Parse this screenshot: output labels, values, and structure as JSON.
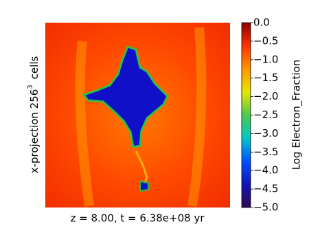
{
  "chart_data": {
    "type": "image",
    "xlabel": "z = 8.00, t = 6.38e+08 yr",
    "ylabel": {
      "text": "x-projection 256",
      "sup": "3",
      "suffix": "cells"
    },
    "colorbar_label": "Log Electron_Fraction",
    "colormap": [
      "#2d0a4e",
      "#1414b4",
      "#0050ff",
      "#00c8c8",
      "#50c850",
      "#e6e600",
      "#ff9600",
      "#ff3200",
      "#8c0000"
    ],
    "ylim": [
      -5,
      0
    ],
    "yticks": [
      {
        "value": 0,
        "label": "0.0"
      },
      {
        "value": -0.5,
        "label": "−0.5"
      },
      {
        "value": -1,
        "label": "−1.0"
      },
      {
        "value": -1.5,
        "label": "−1.5"
      },
      {
        "value": -2,
        "label": "−2.0"
      },
      {
        "value": -2.5,
        "label": "−2.5"
      },
      {
        "value": -3,
        "label": "−3.0"
      },
      {
        "value": -3.5,
        "label": "−3.5"
      },
      {
        "value": -4,
        "label": "−4.0"
      },
      {
        "value": -4.5,
        "label": "−4.5"
      },
      {
        "value": -5,
        "label": "−5.0"
      }
    ]
  }
}
